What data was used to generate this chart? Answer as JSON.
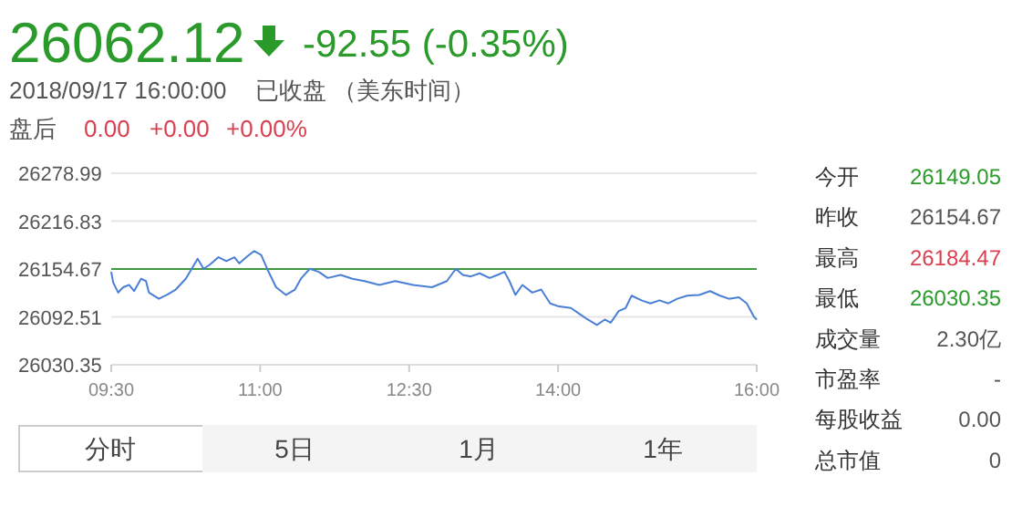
{
  "chart_data": [
    {
      "type": "line",
      "title": "26062.12",
      "subtitle": "-92.55 (-0.35%)",
      "annotations": [
        "2018/09/17 16:00:00",
        "已收盘 （美东时间）",
        "盘后",
        "0.00",
        "+0.00",
        "+0.00%"
      ],
      "x": [
        9.5,
        9.52,
        9.57,
        9.62,
        9.68,
        9.73,
        9.8,
        9.85,
        9.88,
        9.98,
        10.06,
        10.15,
        10.25,
        10.33,
        10.37,
        10.43,
        10.49,
        10.58,
        10.66,
        10.74,
        10.79,
        10.86,
        10.94,
        11.01,
        11.07,
        11.16,
        11.26,
        11.35,
        11.41,
        11.5,
        11.59,
        11.68,
        11.81,
        11.93,
        12.05,
        12.2,
        12.36,
        12.54,
        12.73,
        12.88,
        12.97,
        13.04,
        13.12,
        13.21,
        13.31,
        13.39,
        13.46,
        13.51,
        13.57,
        13.64,
        13.74,
        13.83,
        13.92,
        14.01,
        14.13,
        14.22,
        14.3,
        14.39,
        14.47,
        14.53,
        14.61,
        14.68,
        14.74,
        14.84,
        14.93,
        15.02,
        15.11,
        15.2,
        15.3,
        15.42,
        15.53,
        15.63,
        15.72,
        15.82,
        15.9,
        15.97,
        16.0
      ],
      "series": [
        {
          "color": "#4a7fd6",
          "values": [
            26151,
            26137,
            26124,
            26131,
            26134,
            26126,
            26142,
            26139,
            26124,
            26116,
            26121,
            26128,
            26142,
            26159,
            26168,
            26155,
            26160,
            26170,
            26165,
            26170,
            26162,
            26170,
            26178,
            26173,
            26155,
            26131,
            26121,
            26128,
            26142,
            26155,
            26151,
            26143,
            26147,
            26142,
            26139,
            26134,
            26139,
            26134,
            26131,
            26139,
            26155,
            26147,
            26145,
            26149,
            26143,
            26147,
            26151,
            26139,
            26121,
            26134,
            26124,
            26128,
            26110,
            26106,
            26104,
            26096,
            26089,
            26082,
            26089,
            26085,
            26100,
            26104,
            26120,
            26114,
            26110,
            26114,
            26110,
            26116,
            26120,
            26121,
            26126,
            26120,
            26116,
            26118,
            26110,
            26093,
            26089
          ]
        }
      ],
      "xlim": [
        9.5,
        16
      ],
      "xticks": [
        {
          "value": 9.5,
          "label": "09:30"
        },
        {
          "value": 11,
          "label": "11:00"
        },
        {
          "value": 12.5,
          "label": "12:30"
        },
        {
          "value": 14,
          "label": "14:00"
        },
        {
          "value": 16,
          "label": "16:00"
        }
      ],
      "ylim": [
        26030.35,
        26278.99
      ],
      "yticks": [
        26030.35,
        26092.51,
        26154.67,
        26216.83,
        26278.99
      ],
      "ref_lines": [
        {
          "axis": "y",
          "value": 26154.67,
          "color": "#3f9a3f"
        }
      ],
      "grid": "y",
      "marker": "none",
      "line_style": "solid"
    },
    {
      "type": "other",
      "annotations": [
        "今开",
        "26149.05",
        "昨收",
        "26154.67",
        "最高",
        "26184.47",
        "最低",
        "26030.35",
        "成交量",
        "2.30亿",
        "市盈率",
        "-",
        "每股收益",
        "0.00",
        "总市值",
        "0"
      ]
    },
    {
      "type": "other",
      "annotations": [
        "分时",
        "5日",
        "1月",
        "1年"
      ]
    }
  ]
}
